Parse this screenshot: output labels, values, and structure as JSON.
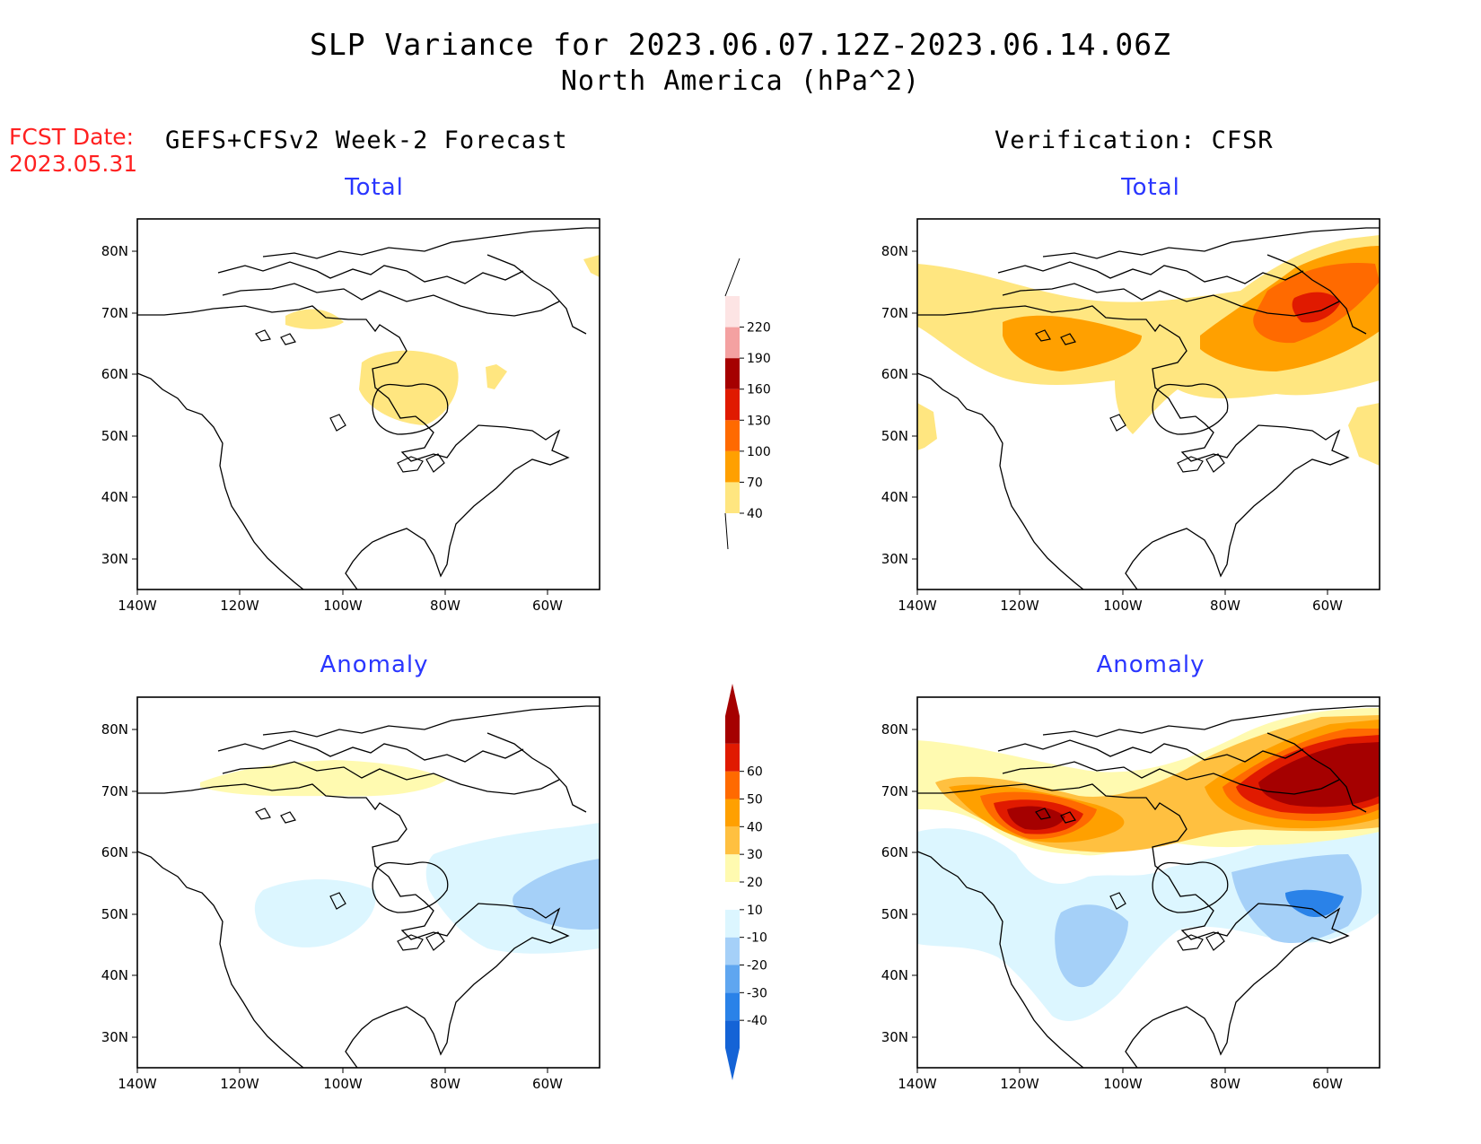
{
  "header": {
    "title": "SLP Variance for 2023.06.07.12Z-2023.06.14.06Z",
    "subtitle": "North America (hPa^2)",
    "fcst_label": "FCST Date:",
    "fcst_date": "2023.05.31",
    "left_heading": "GEFS+CFSv2 Week-2 Forecast",
    "right_heading": "Verification: CFSR"
  },
  "panels": {
    "fcst_total": {
      "title": "Total"
    },
    "fcst_anomaly": {
      "title": "Anomaly"
    },
    "verif_total": {
      "title": "Total"
    },
    "verif_anomaly": {
      "title": "Anomaly"
    }
  },
  "axes": {
    "lon_labels": [
      "140W",
      "120W",
      "100W",
      "80W",
      "60W"
    ],
    "lat_labels": [
      "80N",
      "70N",
      "60N",
      "50N",
      "40N",
      "30N"
    ]
  },
  "colorbars": {
    "total": {
      "labels": [
        "40",
        "70",
        "100",
        "130",
        "160",
        "190",
        "220"
      ],
      "colors": [
        "#ffe680",
        "#ffa000",
        "#ff6a00",
        "#e01a00",
        "#a50000",
        "#f4a1a1",
        "#fde4e4"
      ]
    },
    "anomaly": {
      "labels": [
        "-40",
        "-30",
        "-20",
        "-10",
        "10",
        "20",
        "30",
        "40",
        "50",
        "60"
      ],
      "colors": [
        "#1463d6",
        "#2a82e8",
        "#5fa6f0",
        "#a5d0f8",
        "#dcf6ff",
        "#ffffff",
        "#fffab0",
        "#ffc040",
        "#ffa000",
        "#ff6a00",
        "#e01a00",
        "#a50000"
      ]
    }
  },
  "colors": {
    "date_red": "#ff2020",
    "panel_title_blue": "#2a36ff"
  }
}
